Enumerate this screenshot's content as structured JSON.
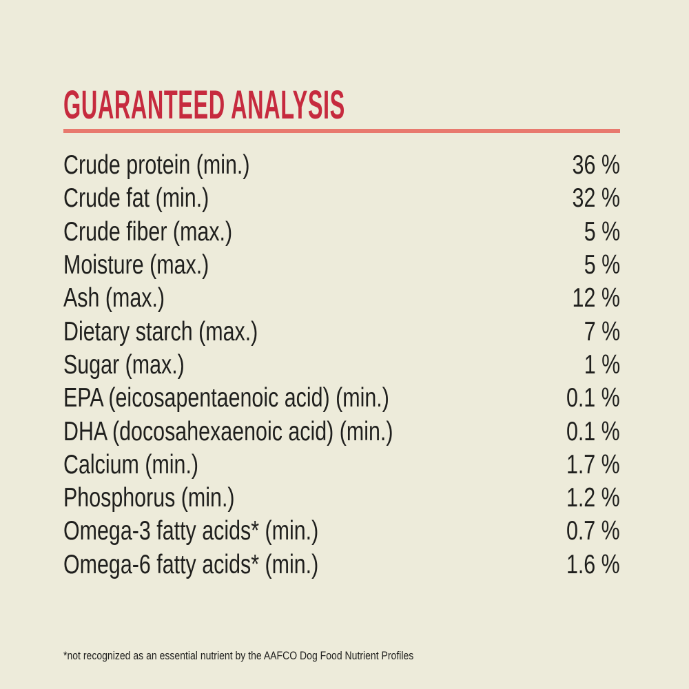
{
  "title": "GUARANTEED ANALYSIS",
  "colors": {
    "background": "#edebda",
    "heading_red": "#c62a3e",
    "divider_salmon": "#e8796e",
    "text": "#1f1f1d"
  },
  "rows": [
    {
      "label": "Crude protein (min.)",
      "value": "36 %"
    },
    {
      "label": "Crude fat (min.)",
      "value": "32 %"
    },
    {
      "label": "Crude fiber (max.)",
      "value": "5 %"
    },
    {
      "label": "Moisture (max.)",
      "value": "5 %"
    },
    {
      "label": "Ash (max.)",
      "value": "12 %"
    },
    {
      "label": "Dietary starch (max.)",
      "value": "7 %"
    },
    {
      "label": "Sugar (max.)",
      "value": "1 %"
    },
    {
      "label": "EPA (eicosapentaenoic acid) (min.)",
      "value": "0.1 %"
    },
    {
      "label": "DHA (docosahexaenoic acid) (min.)",
      "value": "0.1 %"
    },
    {
      "label": "Calcium (min.)",
      "value": "1.7 %"
    },
    {
      "label": "Phosphorus (min.)",
      "value": "1.2 %"
    },
    {
      "label": "Omega-3 fatty acids* (min.)",
      "value": "0.7 %"
    },
    {
      "label": "Omega-6 fatty acids* (min.)",
      "value": "1.6 %"
    }
  ],
  "footnote": "*not recognized as an essential nutrient by the AAFCO Dog Food Nutrient Profiles"
}
